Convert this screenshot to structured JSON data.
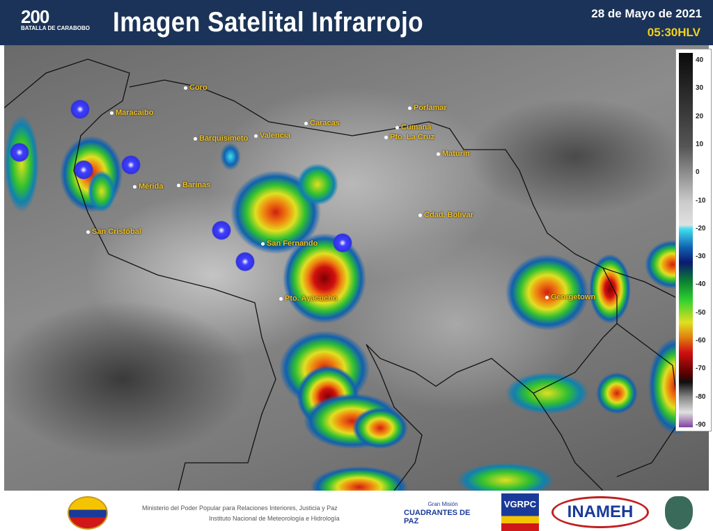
{
  "header": {
    "logo_text": "200",
    "logo_subtitle": "BATALLA DE CARABOBO",
    "title": "Imagen Satelital Infrarrojo",
    "date": "28 de Mayo de 2021",
    "time": "05:30HLV"
  },
  "map": {
    "cities": [
      "Coro",
      "Maracaibo",
      "Barquisimeto",
      "Valencia",
      "Caracas",
      "Porlamar",
      "Cumaná",
      "Pto. La Cruz",
      "Maturín",
      "Mérida",
      "Barinas",
      "San Cristóbal",
      "Cdad. Bolívar",
      "San Fernando",
      "Pto. Ayacucho",
      "Georgetown"
    ]
  },
  "colorbar": {
    "ticks": [
      "40",
      "30",
      "20",
      "10",
      "0",
      "-10",
      "-20",
      "-30",
      "-40",
      "-50",
      "-60",
      "-70",
      "-80",
      "-90"
    ],
    "colors": [
      "#0a0a0a",
      "#cccccc",
      "#40e0f0",
      "#0a1a70",
      "#30d030",
      "#e0e020",
      "#d01010",
      "#500000",
      "#8040a0"
    ]
  },
  "footer": {
    "ministry_line1": "Ministerio del Poder Popular para Relaciones Interiores, Justicia y Paz",
    "ministry_line2": "Instituto Nacional de Meteorología e Hidrología",
    "cuadrantes_top": "Gran Misión",
    "cuadrantes": "CUADRANTES DE PAZ",
    "vgrpc": "VGRPC",
    "inameh": "INAMEH"
  }
}
